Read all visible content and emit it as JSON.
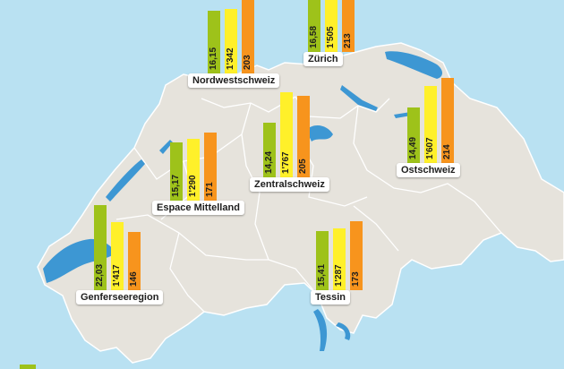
{
  "colors": {
    "water": "#b9e1f2",
    "land": "#e6e3dc",
    "border": "#ffffff",
    "lake": "#3d97d3",
    "green": "#9ec21a",
    "yellow": "#fff02a",
    "orange": "#f7941d"
  },
  "regions": [
    {
      "id": "nordwestschweiz",
      "name": "Nordwestschweiz",
      "values": [
        "16,15",
        "1'342",
        "203"
      ],
      "heights": [
        16.15,
        1342,
        203
      ]
    },
    {
      "id": "zurich",
      "name": "Zürich",
      "values": [
        "16,58",
        "1'505",
        "213"
      ],
      "heights": [
        16.58,
        1505,
        213
      ]
    },
    {
      "id": "ostschweiz",
      "name": "Ostschweiz",
      "values": [
        "14,49",
        "1'607",
        "214"
      ],
      "heights": [
        14.49,
        1607,
        214
      ]
    },
    {
      "id": "zentralschweiz",
      "name": "Zentralschweiz",
      "values": [
        "14,24",
        "1'767",
        "205"
      ],
      "heights": [
        14.24,
        1767,
        205
      ]
    },
    {
      "id": "espace-mittelland",
      "name": "Espace Mittelland",
      "values": [
        "15,17",
        "1'290",
        "171"
      ],
      "heights": [
        15.17,
        1290,
        171
      ]
    },
    {
      "id": "genferseeregion",
      "name": "Genferseeregion",
      "values": [
        "22,03",
        "1'417",
        "146"
      ],
      "heights": [
        22.03,
        1417,
        146
      ]
    },
    {
      "id": "tessin",
      "name": "Tessin",
      "values": [
        "15,41",
        "1'287",
        "173"
      ],
      "heights": [
        15.41,
        1287,
        173
      ]
    }
  ]
}
